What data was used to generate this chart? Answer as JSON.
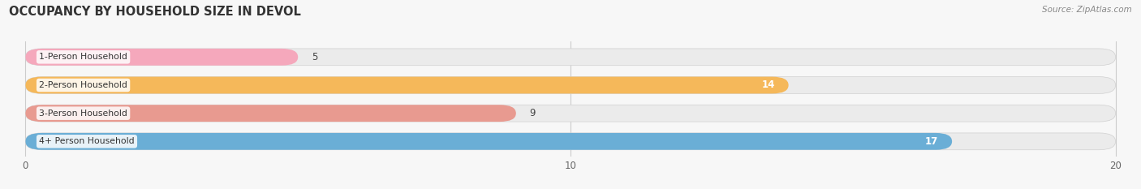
{
  "title": "OCCUPANCY BY HOUSEHOLD SIZE IN DEVOL",
  "source": "Source: ZipAtlas.com",
  "categories": [
    "1-Person Household",
    "2-Person Household",
    "3-Person Household",
    "4+ Person Household"
  ],
  "values": [
    5,
    14,
    9,
    17
  ],
  "bar_colors": [
    "#f5a8bc",
    "#f5b85a",
    "#e89a90",
    "#6aaed6"
  ],
  "bar_bg_color": "#ebebeb",
  "xlim": [
    0,
    20
  ],
  "xticks": [
    0,
    10,
    20
  ],
  "label_colors": [
    "#555555",
    "#ffffff",
    "#555555",
    "#ffffff"
  ],
  "background_color": "#f7f7f7",
  "fig_width": 14.06,
  "fig_height": 2.33,
  "title_fontsize": 10.5,
  "bar_height": 0.6
}
